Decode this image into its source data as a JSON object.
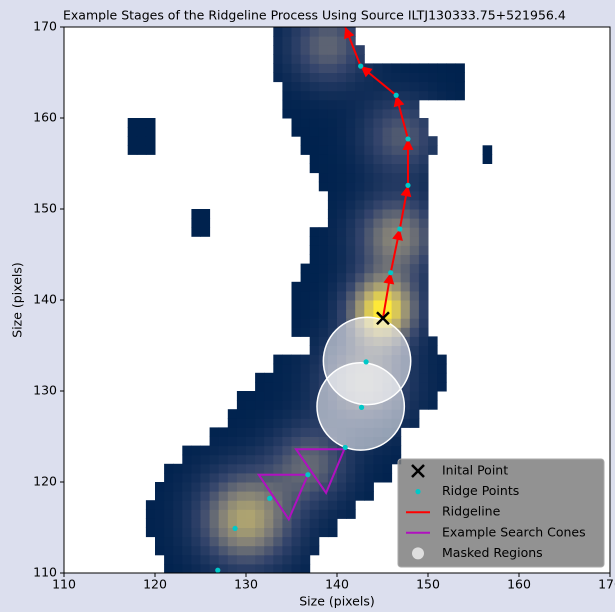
{
  "chart_data": {
    "type": "image",
    "title": "Example Stages of the Ridgeline Process Using Source ILTJ130333.75+521956.4",
    "xlabel": "Size (pixels)",
    "ylabel": "Size (pixels)",
    "xlim": [
      110,
      170
    ],
    "ylim": [
      110,
      170
    ],
    "xticks": [
      110,
      120,
      130,
      140,
      150,
      160,
      170
    ],
    "yticks": [
      110,
      120,
      130,
      140,
      150,
      160,
      170
    ],
    "image": {
      "blocks": [
        [
          110,
          112,
          121,
          137
        ],
        [
          112,
          114,
          120,
          138
        ],
        [
          114,
          116,
          119,
          140
        ],
        [
          116,
          118,
          119,
          142
        ],
        [
          118,
          120,
          120,
          144
        ],
        [
          120,
          122,
          121,
          146
        ],
        [
          122,
          124,
          123,
          147
        ],
        [
          124,
          126,
          126,
          147
        ],
        [
          126,
          128,
          128,
          149
        ],
        [
          128,
          130,
          129,
          151
        ],
        [
          130,
          132,
          131,
          152
        ],
        [
          132,
          134,
          133,
          152
        ],
        [
          134,
          136,
          137,
          151
        ],
        [
          136,
          138,
          135,
          150
        ],
        [
          138,
          140,
          135,
          150
        ],
        [
          140,
          142,
          135,
          150
        ],
        [
          142,
          144,
          136,
          150
        ],
        [
          144,
          146,
          137,
          150
        ],
        [
          146,
          148,
          137,
          150
        ],
        [
          148,
          150,
          139,
          150
        ],
        [
          150,
          152,
          139,
          150
        ],
        [
          152,
          154,
          138,
          150
        ],
        [
          154,
          156,
          137,
          150
        ],
        [
          156,
          158,
          136,
          151
        ],
        [
          158,
          160,
          135,
          150
        ],
        [
          160,
          162,
          134,
          149
        ],
        [
          162,
          164,
          134,
          154
        ],
        [
          164,
          166,
          133,
          154
        ],
        [
          166,
          168,
          133,
          143
        ],
        [
          168,
          170,
          133,
          142
        ],
        [
          156,
          160,
          117,
          120
        ],
        [
          147,
          150,
          124,
          126
        ],
        [
          155,
          157,
          156,
          157
        ]
      ],
      "peaks": [
        [
          145,
          139,
          1.0,
          2.5
        ],
        [
          146.5,
          147,
          0.55,
          3
        ],
        [
          130,
          116,
          0.7,
          3.5
        ],
        [
          143,
          131,
          0.45,
          3.5
        ],
        [
          139,
          168,
          0.4,
          3
        ],
        [
          137,
          122,
          0.4,
          3
        ],
        [
          147,
          158,
          0.35,
          3
        ]
      ],
      "colors": [
        "#00224e",
        "#35456c",
        "#7c7b78",
        "#bcaf6f",
        "#fee838"
      ]
    },
    "masked_regions": {
      "name": "Masked Regions",
      "color": "#ffffff",
      "x": [
        143.3,
        142.6
      ],
      "y": [
        133.3,
        128.3
      ],
      "r": [
        4.8,
        4.8
      ]
    },
    "ridgeline": {
      "name": "Ridgeline",
      "color": "#ff0000",
      "x": [
        145.05,
        145.9,
        146.9,
        147.8,
        147.8,
        146.5,
        142.6,
        140.9
      ],
      "y": [
        138,
        143,
        147.8,
        152.6,
        157.7,
        162.5,
        165.7,
        170
      ]
    },
    "search_cones": {
      "name": "Example Search Cones",
      "color": "#b010c0",
      "triangles": [
        {
          "x": [
            135.5,
            140.8,
            138.8
          ],
          "y": [
            123.6,
            123.6,
            118.8
          ]
        },
        {
          "x": [
            131.4,
            136.8,
            134.7
          ],
          "y": [
            120.8,
            120.8,
            115.9
          ]
        }
      ]
    },
    "ridge_points": {
      "name": "Ridge Points",
      "color": "#00c8c8",
      "x": [
        126.9,
        128.8,
        132.6,
        136.8,
        140.9,
        142.7,
        143.2,
        145.9,
        146.9,
        147.8,
        147.8,
        146.5,
        142.6
      ],
      "y": [
        110.3,
        114.9,
        118.2,
        120.8,
        123.8,
        128.2,
        133.2,
        143,
        147.8,
        152.6,
        157.7,
        162.5,
        165.7
      ]
    },
    "initial_point": {
      "name": "Inital Point",
      "color": "#000000",
      "x": 145.05,
      "y": 138
    },
    "legend": "lower right"
  }
}
